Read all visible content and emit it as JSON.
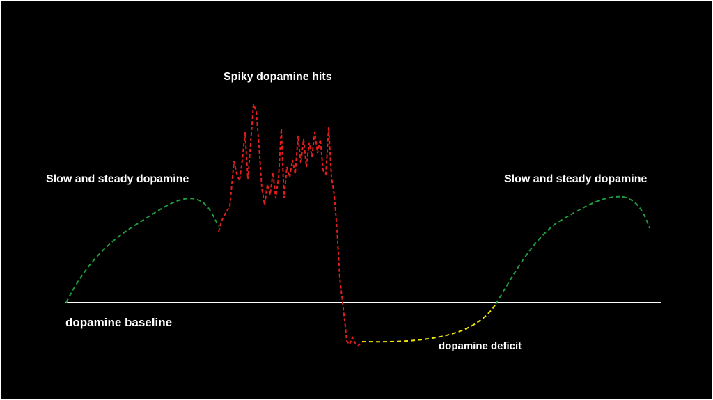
{
  "labels": {
    "spiky": "Spiky dopamine hits",
    "steady_left": "Slow and steady dopamine",
    "steady_right": "Slow and steady dopamine",
    "baseline": "dopamine baseline",
    "deficit": "dopamine deficit"
  },
  "colors": {
    "background": "#000000",
    "frame": "#ffffff",
    "baseline": "#ffffff",
    "steady": "#1e9e3c",
    "spiky": "#e11d1d",
    "deficit": "#f2e60c",
    "text": "#ffffff"
  }
}
